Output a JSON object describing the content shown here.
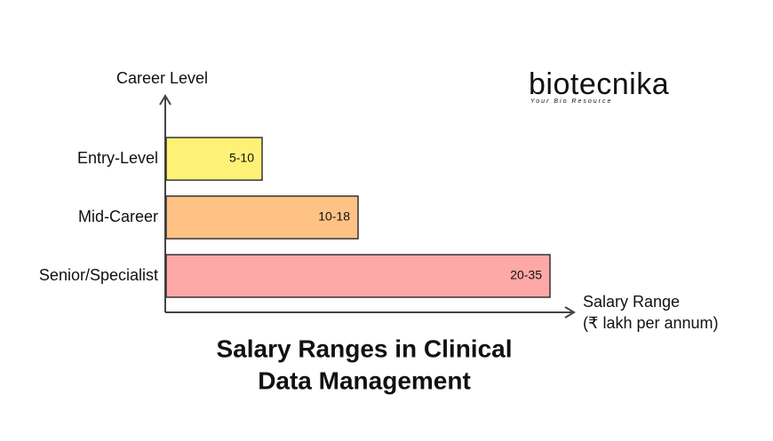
{
  "title": [
    "Salary Ranges in Clinical",
    "Data Management"
  ],
  "y_axis_label": "Career Level",
  "x_axis_label": [
    "Salary Range",
    "(₹ lakh per annum)"
  ],
  "rows": [
    {
      "label": "Entry-Level",
      "range": "5-10",
      "color": "#fff176"
    },
    {
      "label": "Mid-Career",
      "range": "10-18",
      "color": "#ffc285"
    },
    {
      "label": "Senior/Specialist",
      "range": "20-35",
      "color": "#ffa8a8"
    }
  ],
  "logo": {
    "name": "biotecnika",
    "tagline": "Your Bio Resource"
  }
}
